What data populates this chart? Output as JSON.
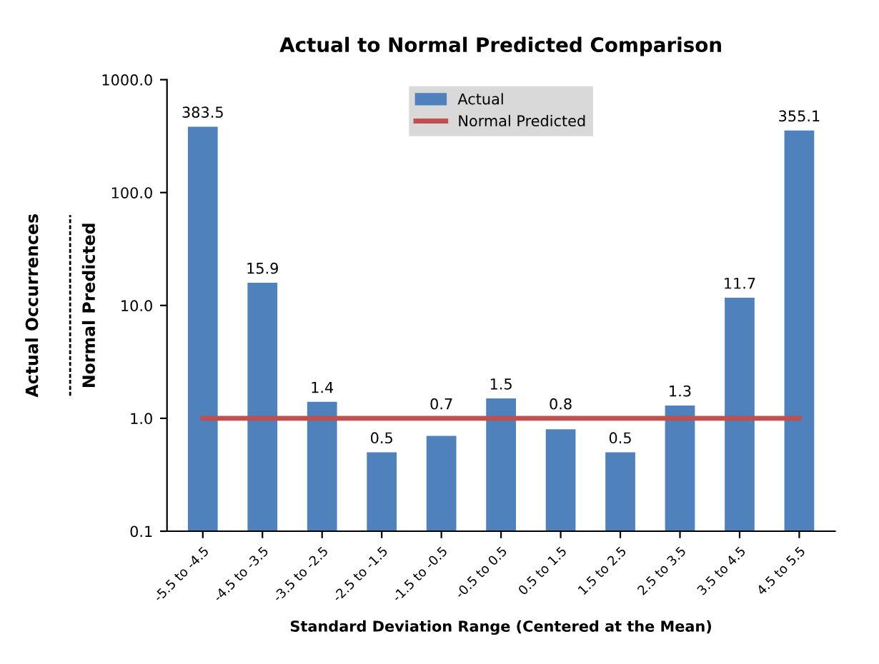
{
  "chart_data": {
    "type": "bar",
    "title": "Actual to Normal Predicted Comparison",
    "xlabel": "Standard Deviation Range (Centered at the Mean)",
    "ylabel": "Actual Occurrences",
    "annotations": [
      "Normal Predicted"
    ],
    "categories": [
      "-5.5 to -4.5",
      "-4.5 to -3.5",
      "-3.5 to -2.5",
      "-2.5 to -1.5",
      "-1.5 to -0.5",
      "-0.5 to 0.5",
      "0.5 to 1.5",
      "1.5 to 2.5",
      "2.5 to 3.5",
      "3.5 to 4.5",
      "4.5 to 5.5"
    ],
    "series": [
      {
        "name": "Actual",
        "color": "#4f81bd",
        "values": [
          383.5,
          15.9,
          1.4,
          0.5,
          0.7,
          1.5,
          0.8,
          0.5,
          1.3,
          11.7,
          355.1
        ],
        "value_labels": [
          "383.5",
          "15.9",
          "1.4",
          "0.5",
          "0.7",
          "1.5",
          "0.8",
          "0.5",
          "1.3",
          "11.7",
          "355.1"
        ]
      },
      {
        "name": "Normal Predicted",
        "type": "line",
        "color": "#c0504d",
        "values": [
          1,
          1,
          1,
          1,
          1,
          1,
          1,
          1,
          1,
          1,
          1
        ]
      }
    ],
    "log": "y",
    "ylim": [
      0.1,
      1000
    ],
    "yticks": [
      {
        "value": 0.1,
        "label": "0.1"
      },
      {
        "value": 1,
        "label": "1.0"
      },
      {
        "value": 10,
        "label": "10.0"
      },
      {
        "value": 100,
        "label": "100.0"
      },
      {
        "value": 1000,
        "label": "1000.0"
      }
    ],
    "grid": false,
    "legend": "top",
    "marker": "none",
    "line_style": "solid"
  }
}
